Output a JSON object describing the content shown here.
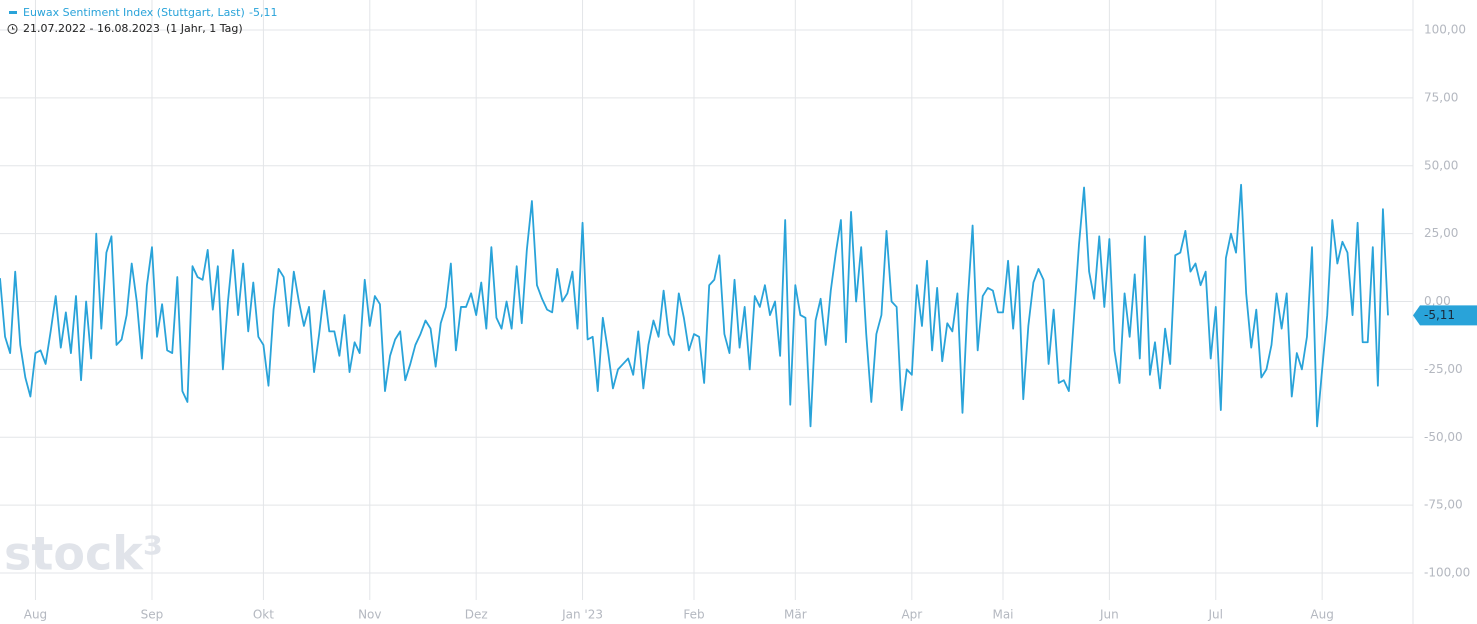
{
  "chart_data": {
    "type": "line",
    "legend_name": "Euwax Sentiment Index (Stuttgart, Last)",
    "last_value_label": "-5,11",
    "date_range": "21.07.2022 - 16.08.2023",
    "period": "(1 Jahr, 1 Tag)",
    "watermark": "stock³",
    "color": "#29a3d9",
    "grid": true,
    "values": [
      8.6,
      -13,
      -19,
      11,
      -16,
      -28,
      -35,
      -19,
      -18,
      -23,
      -11,
      2,
      -17,
      -4,
      -19,
      2,
      -29,
      0,
      -21,
      25,
      -10,
      18,
      24,
      -16,
      -14,
      -5,
      14,
      0,
      -21,
      6,
      20,
      -13,
      -1,
      -18,
      -19,
      9,
      -33,
      -37,
      13,
      9,
      8,
      19,
      -3,
      13,
      -25,
      0,
      19,
      -5,
      14,
      -11,
      7,
      -13,
      -16,
      -31,
      -3,
      12,
      9,
      -9,
      11,
      0,
      -9,
      -2,
      -26,
      -12,
      4,
      -11,
      -11,
      -20,
      -5,
      -26,
      -15,
      -19,
      8,
      -9,
      2,
      -1,
      -33,
      -20,
      -14,
      -11,
      -29,
      -23,
      -16,
      -12,
      -7,
      -10,
      -24,
      -8,
      -2,
      14,
      -18,
      -2,
      -2,
      3,
      -5,
      7,
      -10,
      20,
      -6,
      -10,
      0,
      -10,
      13,
      -8,
      19,
      37,
      6,
      1,
      -3,
      -4,
      12,
      0,
      3,
      11,
      -10,
      29,
      -14,
      -13,
      -33,
      -6,
      -18,
      -32,
      -25,
      -23,
      -21,
      -27,
      -11,
      -32,
      -16,
      -7,
      -13,
      4,
      -12,
      -16,
      3,
      -6,
      -18,
      -12,
      -13,
      -30,
      6,
      8,
      17,
      -12,
      -19,
      8,
      -17,
      -2,
      -25,
      2,
      -2,
      6,
      -5,
      0,
      -20,
      30,
      -38,
      6,
      -5,
      -6,
      -46,
      -7,
      1,
      -16,
      4,
      18,
      30,
      -15,
      33,
      0,
      20,
      -12,
      -37,
      -12,
      -5,
      26,
      0,
      -2,
      -40,
      -25,
      -27,
      6,
      -9,
      15,
      -18,
      5,
      -22,
      -8,
      -11,
      3,
      -41,
      -1,
      28,
      -18,
      2,
      5,
      4,
      -4,
      -4,
      15,
      -10,
      13,
      -36,
      -9,
      7,
      12,
      8,
      -23,
      -3,
      -30,
      -29,
      -33,
      -6,
      21,
      42,
      11,
      1,
      24,
      -2,
      23,
      -18,
      -30,
      3,
      -13,
      10,
      -21,
      24,
      -27,
      -15,
      -32,
      -10,
      -23,
      17,
      18,
      26,
      11,
      14,
      6,
      11,
      -21,
      -2,
      -40,
      16,
      25,
      18,
      43,
      3,
      -17,
      -3,
      -28,
      -25,
      -16,
      3,
      -10,
      3,
      -35,
      -19,
      -25,
      -13,
      20,
      -46,
      -25,
      -5,
      30,
      14,
      22,
      18,
      -5,
      29,
      -15,
      -15,
      20,
      -31,
      34,
      -5.11
    ],
    "xticks": [
      {
        "value": 7,
        "label": "Aug"
      },
      {
        "value": 30,
        "label": "Sep"
      },
      {
        "value": 52,
        "label": "Okt"
      },
      {
        "value": 73,
        "label": "Nov"
      },
      {
        "value": 94,
        "label": "Dez"
      },
      {
        "value": 115,
        "label": "Jan '23"
      },
      {
        "value": 137,
        "label": "Feb"
      },
      {
        "value": 157,
        "label": "Mär"
      },
      {
        "value": 180,
        "label": "Apr"
      },
      {
        "value": 198,
        "label": "Mai"
      },
      {
        "value": 219,
        "label": "Jun"
      },
      {
        "value": 240,
        "label": "Jul"
      },
      {
        "value": 261,
        "label": "Aug"
      }
    ],
    "ylim": [
      -100,
      100
    ],
    "yticks": [
      {
        "value": -100,
        "label": "-100,00"
      },
      {
        "value": -75,
        "label": "-75,00"
      },
      {
        "value": -50,
        "label": "-50,00"
      },
      {
        "value": -25,
        "label": "-25,00"
      },
      {
        "value": 0,
        "label": "0,00"
      },
      {
        "value": 25,
        "label": "25,00"
      },
      {
        "value": 50,
        "label": "50,00"
      },
      {
        "value": 75,
        "label": "75,00"
      },
      {
        "value": 100,
        "label": "100,00"
      }
    ]
  }
}
